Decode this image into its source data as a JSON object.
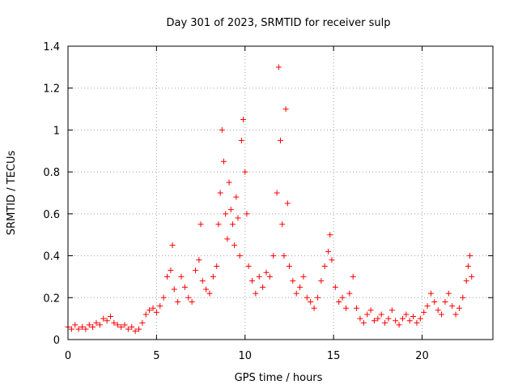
{
  "chart_data": {
    "type": "scatter",
    "title": "Day 301 of 2023, SRMTID for receiver sulp",
    "xlabel": "GPS time / hours",
    "ylabel": "SRMTID / TECUs",
    "xlim": [
      0,
      24
    ],
    "ylim": [
      0,
      1.4
    ],
    "xticks": [
      0,
      5,
      10,
      15,
      20
    ],
    "xtick_labels": [
      "0",
      "5",
      "10",
      "15",
      "20"
    ],
    "yticks": [
      0,
      0.2,
      0.4,
      0.6,
      0.8,
      1,
      1.2,
      1.4
    ],
    "ytick_labels": [
      "0",
      "0.2",
      "0.4",
      "0.6",
      "0.8",
      "1",
      "1.2",
      "1.4"
    ],
    "grid": true,
    "marker": "+",
    "color": "#ff0000",
    "series": [
      {
        "name": "SRMTID",
        "points": [
          [
            0.0,
            0.06
          ],
          [
            0.2,
            0.05
          ],
          [
            0.4,
            0.07
          ],
          [
            0.6,
            0.05
          ],
          [
            0.8,
            0.06
          ],
          [
            1.0,
            0.05
          ],
          [
            1.2,
            0.07
          ],
          [
            1.4,
            0.06
          ],
          [
            1.6,
            0.08
          ],
          [
            1.8,
            0.07
          ],
          [
            2.0,
            0.1
          ],
          [
            2.2,
            0.09
          ],
          [
            2.4,
            0.11
          ],
          [
            2.6,
            0.08
          ],
          [
            2.8,
            0.07
          ],
          [
            3.0,
            0.06
          ],
          [
            3.2,
            0.07
          ],
          [
            3.4,
            0.05
          ],
          [
            3.6,
            0.06
          ],
          [
            3.8,
            0.04
          ],
          [
            4.0,
            0.05
          ],
          [
            4.2,
            0.08
          ],
          [
            4.4,
            0.12
          ],
          [
            4.6,
            0.14
          ],
          [
            4.8,
            0.15
          ],
          [
            5.0,
            0.13
          ],
          [
            5.2,
            0.16
          ],
          [
            5.4,
            0.2
          ],
          [
            5.6,
            0.3
          ],
          [
            5.8,
            0.33
          ],
          [
            5.9,
            0.45
          ],
          [
            6.0,
            0.24
          ],
          [
            6.2,
            0.18
          ],
          [
            6.4,
            0.3
          ],
          [
            6.6,
            0.25
          ],
          [
            6.8,
            0.2
          ],
          [
            7.0,
            0.18
          ],
          [
            7.2,
            0.33
          ],
          [
            7.4,
            0.38
          ],
          [
            7.5,
            0.55
          ],
          [
            7.6,
            0.28
          ],
          [
            7.8,
            0.24
          ],
          [
            8.0,
            0.22
          ],
          [
            8.2,
            0.3
          ],
          [
            8.4,
            0.35
          ],
          [
            8.5,
            0.55
          ],
          [
            8.6,
            0.7
          ],
          [
            8.7,
            1.0
          ],
          [
            8.8,
            0.85
          ],
          [
            8.9,
            0.6
          ],
          [
            9.0,
            0.48
          ],
          [
            9.1,
            0.75
          ],
          [
            9.2,
            0.62
          ],
          [
            9.3,
            0.55
          ],
          [
            9.4,
            0.45
          ],
          [
            9.5,
            0.68
          ],
          [
            9.6,
            0.58
          ],
          [
            9.7,
            0.4
          ],
          [
            9.8,
            0.95
          ],
          [
            9.9,
            1.05
          ],
          [
            10.0,
            0.8
          ],
          [
            10.1,
            0.6
          ],
          [
            10.2,
            0.35
          ],
          [
            10.4,
            0.28
          ],
          [
            10.6,
            0.22
          ],
          [
            10.8,
            0.3
          ],
          [
            11.0,
            0.25
          ],
          [
            11.2,
            0.32
          ],
          [
            11.4,
            0.3
          ],
          [
            11.6,
            0.4
          ],
          [
            11.8,
            0.7
          ],
          [
            11.9,
            1.3
          ],
          [
            12.0,
            0.95
          ],
          [
            12.1,
            0.55
          ],
          [
            12.2,
            0.4
          ],
          [
            12.3,
            1.1
          ],
          [
            12.4,
            0.65
          ],
          [
            12.5,
            0.35
          ],
          [
            12.7,
            0.28
          ],
          [
            12.9,
            0.22
          ],
          [
            13.1,
            0.25
          ],
          [
            13.3,
            0.3
          ],
          [
            13.5,
            0.2
          ],
          [
            13.7,
            0.18
          ],
          [
            13.9,
            0.15
          ],
          [
            14.1,
            0.2
          ],
          [
            14.3,
            0.28
          ],
          [
            14.5,
            0.35
          ],
          [
            14.7,
            0.42
          ],
          [
            14.8,
            0.5
          ],
          [
            14.9,
            0.38
          ],
          [
            15.1,
            0.25
          ],
          [
            15.3,
            0.18
          ],
          [
            15.5,
            0.2
          ],
          [
            15.7,
            0.15
          ],
          [
            15.9,
            0.22
          ],
          [
            16.1,
            0.3
          ],
          [
            16.3,
            0.15
          ],
          [
            16.5,
            0.1
          ],
          [
            16.7,
            0.08
          ],
          [
            16.9,
            0.12
          ],
          [
            17.1,
            0.14
          ],
          [
            17.3,
            0.09
          ],
          [
            17.5,
            0.1
          ],
          [
            17.7,
            0.12
          ],
          [
            17.9,
            0.08
          ],
          [
            18.1,
            0.1
          ],
          [
            18.3,
            0.14
          ],
          [
            18.5,
            0.09
          ],
          [
            18.7,
            0.07
          ],
          [
            18.9,
            0.1
          ],
          [
            19.1,
            0.12
          ],
          [
            19.3,
            0.09
          ],
          [
            19.5,
            0.11
          ],
          [
            19.7,
            0.08
          ],
          [
            19.9,
            0.1
          ],
          [
            20.1,
            0.13
          ],
          [
            20.3,
            0.16
          ],
          [
            20.5,
            0.22
          ],
          [
            20.7,
            0.18
          ],
          [
            20.9,
            0.14
          ],
          [
            21.1,
            0.12
          ],
          [
            21.3,
            0.18
          ],
          [
            21.5,
            0.22
          ],
          [
            21.7,
            0.16
          ],
          [
            21.9,
            0.12
          ],
          [
            22.1,
            0.15
          ],
          [
            22.3,
            0.2
          ],
          [
            22.5,
            0.28
          ],
          [
            22.6,
            0.35
          ],
          [
            22.7,
            0.4
          ],
          [
            22.8,
            0.3
          ]
        ]
      }
    ]
  }
}
